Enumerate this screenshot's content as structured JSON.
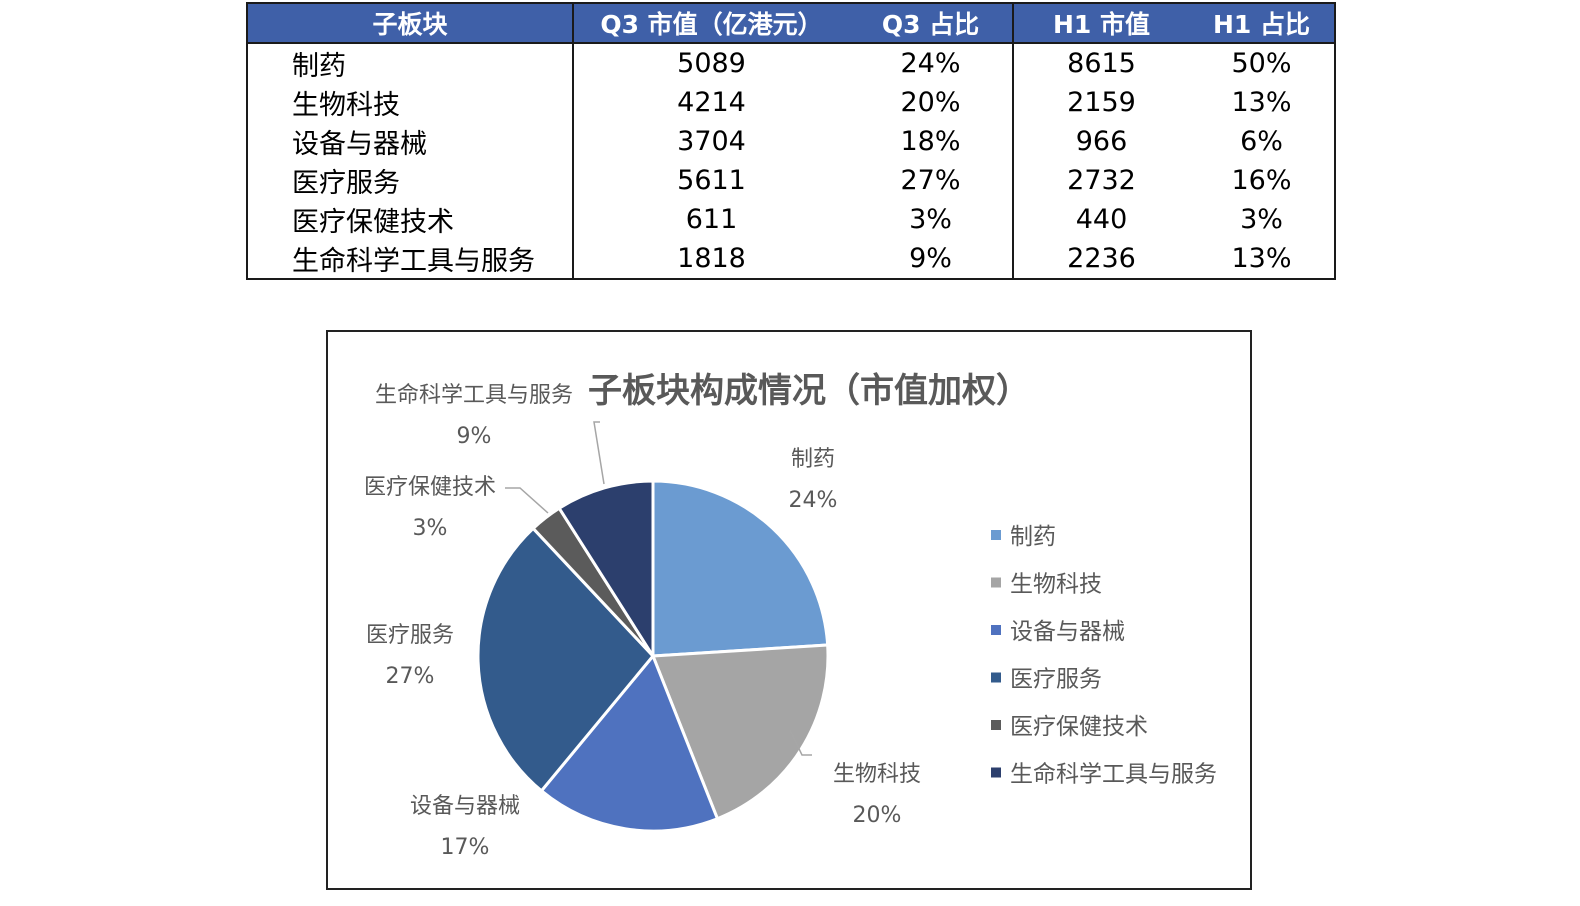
{
  "table": {
    "headers": [
      "子板块",
      "Q3 市值（亿港元）",
      "Q3 占比",
      "H1 市值",
      "H1 占比"
    ],
    "rows": [
      {
        "name": "制药",
        "q3_value": "5089",
        "q3_share": "24%",
        "h1_value": "8615",
        "h1_share": "50%"
      },
      {
        "name": "生物科技",
        "q3_value": "4214",
        "q3_share": "20%",
        "h1_value": "2159",
        "h1_share": "13%"
      },
      {
        "name": "设备与器械",
        "q3_value": "3704",
        "q3_share": "18%",
        "h1_value": "966",
        "h1_share": "6%"
      },
      {
        "name": "医疗服务",
        "q3_value": "5611",
        "q3_share": "27%",
        "h1_value": "2732",
        "h1_share": "16%"
      },
      {
        "name": "医疗保健技术",
        "q3_value": "611",
        "q3_share": "3%",
        "h1_value": "440",
        "h1_share": "3%"
      },
      {
        "name": "生命科学工具与服务",
        "q3_value": "1818",
        "q3_share": "9%",
        "h1_value": "2236",
        "h1_share": "13%"
      }
    ]
  },
  "chart_data": {
    "type": "pie",
    "title": "子板块构成情况（市值加权）",
    "categories": [
      "制药",
      "生物科技",
      "设备与器械",
      "医疗服务",
      "医疗保健技术",
      "生命科学工具与服务"
    ],
    "values": [
      24,
      20,
      17,
      27,
      3,
      9
    ],
    "labels": [
      "24%",
      "20%",
      "17%",
      "27%",
      "3%",
      "9%"
    ],
    "colors": [
      "#6b9bd1",
      "#a5a5a5",
      "#4f72bf",
      "#335b8c",
      "#5b5b5b",
      "#2c3f6d"
    ],
    "legend": "right"
  }
}
